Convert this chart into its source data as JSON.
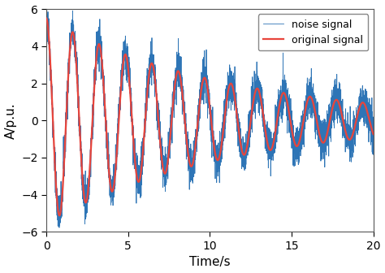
{
  "title": "",
  "xlabel": "Time/s",
  "ylabel": "A/p.u.",
  "xlim": [
    0,
    20
  ],
  "ylim": [
    -6,
    6
  ],
  "xticks": [
    0,
    5,
    10,
    15,
    20
  ],
  "yticks": [
    -6,
    -4,
    -2,
    0,
    2,
    4,
    6
  ],
  "noise_color": "#2e75b6",
  "original_color": "#e8453c",
  "noise_label": "noise signal",
  "original_label": "original signal",
  "noise_linewidth": 0.6,
  "original_linewidth": 1.6,
  "signal_freq": 0.62,
  "signal_decay": 0.09,
  "signal_amplitude": 5.5,
  "noise_std": 0.55,
  "dt": 0.005,
  "duration": 20.0,
  "seed": 42,
  "legend_loc": "upper right",
  "legend_fontsize": 9,
  "axis_label_fontsize": 11,
  "tick_fontsize": 10,
  "fig_width": 4.74,
  "fig_height": 3.36,
  "dpi": 100
}
